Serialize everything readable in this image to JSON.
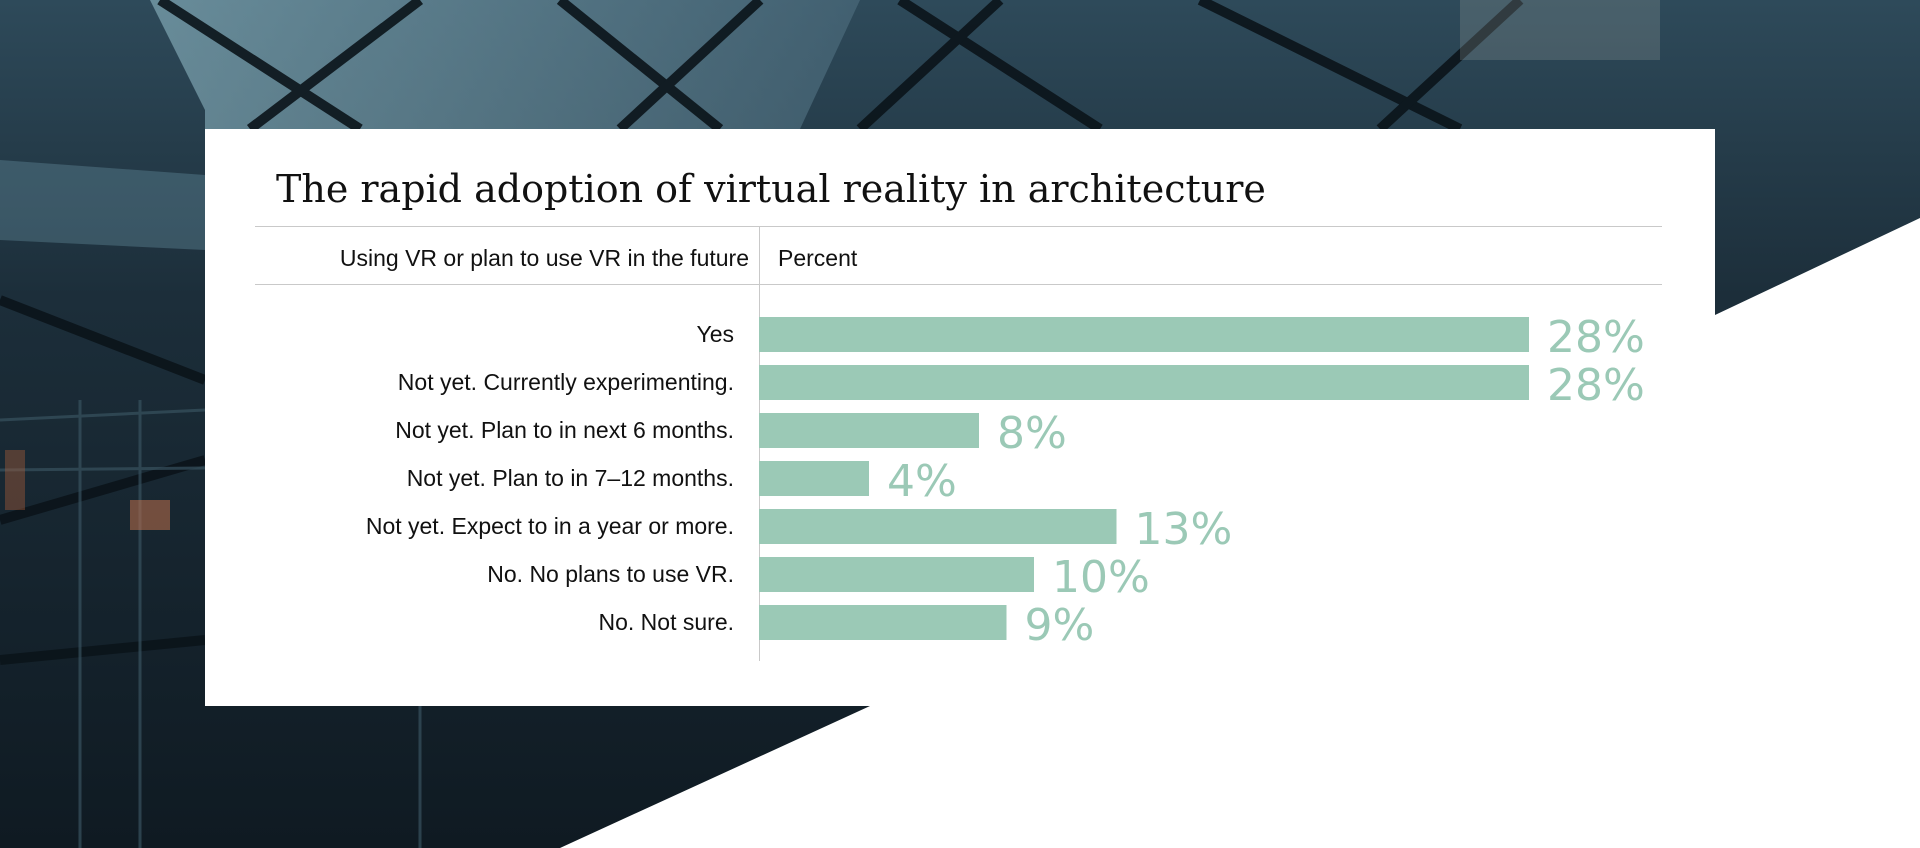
{
  "colors": {
    "bar": "#9bc9b6",
    "value_text": "#9bc9b6",
    "text": "#111111",
    "rule": "#c9c9c9"
  },
  "background": {
    "description_icon": "building-interior-photo"
  },
  "chart_data": {
    "type": "bar",
    "orientation": "horizontal",
    "title": "The rapid adoption of virtual reality in architecture",
    "category_header": "Using VR or plan to use VR in the future",
    "value_header": "Percent",
    "categories": [
      "Yes",
      "Not yet. Currently experimenting.",
      "Not yet. Plan to in next 6 months.",
      "Not yet. Plan to in 7–12 months.",
      "Not yet. Expect to in a year or more.",
      "No. No plans to use VR.",
      "No. Not sure."
    ],
    "values": [
      28,
      28,
      8,
      4,
      13,
      10,
      9
    ],
    "value_labels": [
      "28%",
      "28%",
      "8%",
      "4%",
      "13%",
      "10%",
      "9%"
    ],
    "xlim": [
      0,
      28
    ],
    "unit": "%",
    "grid": false,
    "legend": "none"
  }
}
